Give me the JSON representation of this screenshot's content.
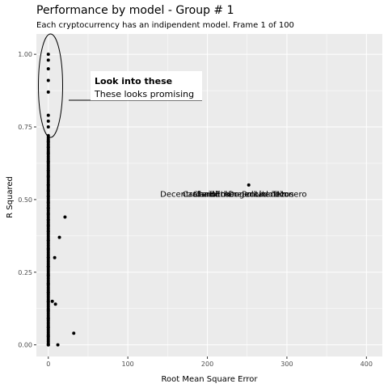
{
  "chart_data": {
    "type": "scatter",
    "title": "Performance by model - Group # 1",
    "subtitle": "Each cryptocurrency has an indipendent model. Frame 1 of 100",
    "xlabel": "Root Mean Square Error",
    "ylabel": "R Squared",
    "xlim": [
      -15,
      420
    ],
    "ylim": [
      -0.04,
      1.07
    ],
    "x_ticks": [
      "0",
      "100",
      "200",
      "300",
      "400"
    ],
    "y_ticks": [
      "0.00",
      "0.25",
      "0.50",
      "0.75",
      "1.00"
    ],
    "grid": true,
    "points": [
      {
        "x": 0,
        "y": 1.0
      },
      {
        "x": 0,
        "y": 0.98
      },
      {
        "x": 0,
        "y": 0.95
      },
      {
        "x": 0,
        "y": 0.91
      },
      {
        "x": 0,
        "y": 0.87
      },
      {
        "x": 0,
        "y": 0.79
      },
      {
        "x": 0,
        "y": 0.77
      },
      {
        "x": 0,
        "y": 0.75
      },
      {
        "x": 0,
        "y": 0.72
      },
      {
        "x": 0,
        "y": 0.7
      },
      {
        "x": 0,
        "y": 0.68
      },
      {
        "x": 0,
        "y": 0.66
      },
      {
        "x": 0,
        "y": 0.63
      },
      {
        "x": 0,
        "y": 0.6
      },
      {
        "x": 0,
        "y": 0.58
      },
      {
        "x": 0,
        "y": 0.55
      },
      {
        "x": 0,
        "y": 0.53
      },
      {
        "x": 0,
        "y": 0.51
      },
      {
        "x": 0,
        "y": 0.49
      },
      {
        "x": 0,
        "y": 0.47
      },
      {
        "x": 0,
        "y": 0.45
      },
      {
        "x": 0,
        "y": 0.43
      },
      {
        "x": 0,
        "y": 0.41
      },
      {
        "x": 0,
        "y": 0.39
      },
      {
        "x": 0,
        "y": 0.36
      },
      {
        "x": 0,
        "y": 0.33
      },
      {
        "x": 0,
        "y": 0.3
      },
      {
        "x": 0,
        "y": 0.27
      },
      {
        "x": 0,
        "y": 0.24
      },
      {
        "x": 0,
        "y": 0.21
      },
      {
        "x": 0,
        "y": 0.18
      },
      {
        "x": 0,
        "y": 0.15
      },
      {
        "x": 0,
        "y": 0.12
      },
      {
        "x": 0,
        "y": 0.09
      },
      {
        "x": 0,
        "y": 0.06
      },
      {
        "x": 0,
        "y": 0.03
      },
      {
        "x": 0,
        "y": 0.0
      },
      {
        "x": 21,
        "y": 0.44
      },
      {
        "x": 14,
        "y": 0.37
      },
      {
        "x": 8,
        "y": 0.3
      },
      {
        "x": 5,
        "y": 0.15
      },
      {
        "x": 9,
        "y": 0.14
      },
      {
        "x": 32,
        "y": 0.04
      },
      {
        "x": 12,
        "y": 0.0
      },
      {
        "x": 252,
        "y": 0.55
      }
    ],
    "point_labels": [
      {
        "text": "Decentraland",
        "x": 175,
        "y": 0.52
      },
      {
        "text": "Cardano",
        "x": 190,
        "y": 0.52
      },
      {
        "text": "Chainlink",
        "x": 205,
        "y": 0.52
      },
      {
        "text": "Bitcoin",
        "x": 220,
        "y": 0.52
      },
      {
        "text": "Ethereum",
        "x": 235,
        "y": 0.52
      },
      {
        "text": "Dogecoin",
        "x": 250,
        "y": 0.52
      },
      {
        "text": "Polkadot",
        "x": 265,
        "y": 0.52
      },
      {
        "text": "Litecoin",
        "x": 280,
        "y": 0.52
      },
      {
        "text": "Tezos",
        "x": 295,
        "y": 0.52
      },
      {
        "text": "Monero",
        "x": 306,
        "y": 0.52
      }
    ],
    "annotation": {
      "title": "Look into these",
      "text": "These looks promising"
    }
  }
}
